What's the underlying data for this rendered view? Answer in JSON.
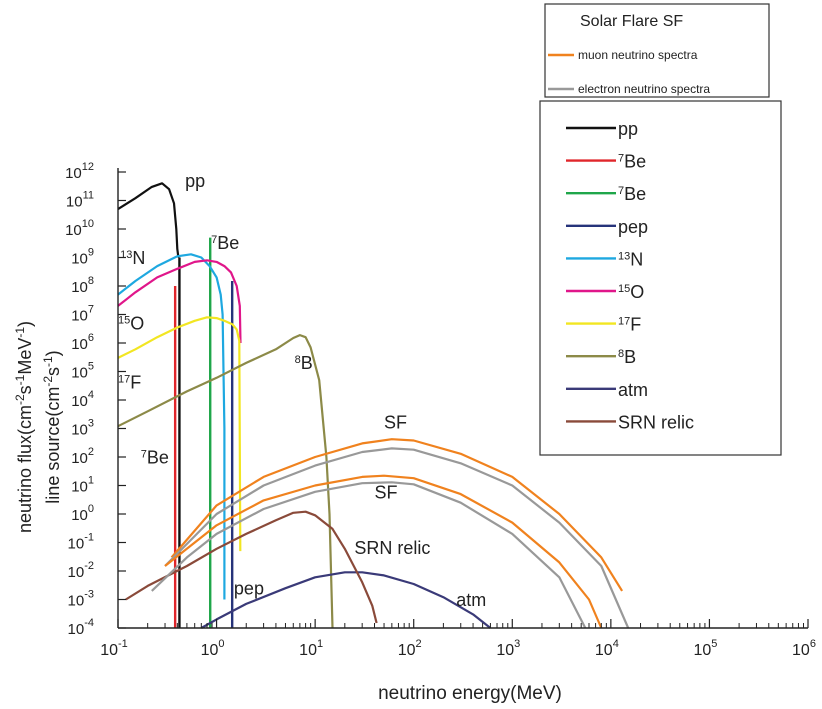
{
  "chart_data": {
    "type": "line",
    "title": "",
    "xlabel": "neutrino energy(MeV)",
    "ylabel_lines": [
      {
        "base": "neutrino flux(cm",
        "parts": [
          [
            "-2",
            "sup"
          ],
          [
            "s",
            ""
          ],
          [
            "-1",
            "sup"
          ],
          [
            "MeV",
            ""
          ],
          [
            "-1",
            "sup"
          ],
          [
            ")",
            ""
          ]
        ]
      },
      {
        "base": "line source(cm",
        "parts": [
          [
            "-2",
            "sup"
          ],
          [
            "s",
            ""
          ],
          [
            "-1",
            "sup"
          ],
          [
            ")",
            ""
          ]
        ]
      }
    ],
    "x_scale": "log",
    "y_scale": "log",
    "xlim": [
      0.1,
      1000000
    ],
    "ylim": [
      0.0001,
      1000000000000
    ],
    "x_tick_exponents": [
      -1,
      0,
      1,
      2,
      3,
      4,
      5,
      6
    ],
    "y_tick_exponents": [
      -4,
      -3,
      -2,
      -1,
      0,
      1,
      2,
      3,
      4,
      5,
      6,
      7,
      8,
      9,
      10,
      11,
      12
    ],
    "tick_base": "10",
    "grid": false,
    "legend_top": {
      "title": "Solar Flare  SF",
      "entries": [
        {
          "label": "muon neutrino spectra",
          "color": "#f0821e"
        },
        {
          "label": "electron neutrino  spectra",
          "color": "#999999"
        }
      ]
    },
    "legend_main": {
      "entries": [
        {
          "label": "pp",
          "sup": "",
          "color": "#111111"
        },
        {
          "label": "Be",
          "sup": "7",
          "color": "#e0262b"
        },
        {
          "label": "Be",
          "sup": "7",
          "color": "#1fa64a"
        },
        {
          "label": "pep",
          "sup": "",
          "color": "#26337a"
        },
        {
          "label": "N",
          "sup": "13",
          "color": "#1ea8e0"
        },
        {
          "label": "O",
          "sup": "15",
          "color": "#e0168a"
        },
        {
          "label": "F",
          "sup": "17",
          "color": "#f2e622"
        },
        {
          "label": "B",
          "sup": "8",
          "color": "#8c8a48"
        },
        {
          "label": "atm",
          "sup": "",
          "color": "#3a3a78"
        },
        {
          "label": "SRN relic",
          "sup": "",
          "color": "#8a4a3a"
        }
      ]
    },
    "series": [
      {
        "name": "pp",
        "color": "#111111",
        "points": [
          [
            0.1,
            50000000000.0
          ],
          [
            0.15,
            120000000000.0
          ],
          [
            0.22,
            300000000000.0
          ],
          [
            0.28,
            400000000000.0
          ],
          [
            0.33,
            250000000000.0
          ],
          [
            0.37,
            80000000000.0
          ],
          [
            0.39,
            10000000000.0
          ],
          [
            0.4,
            2000000000.0
          ],
          [
            0.41,
            1000000000.0
          ]
        ]
      },
      {
        "name": "13N",
        "color": "#1ea8e0",
        "points": [
          [
            0.1,
            50000000.0
          ],
          [
            0.15,
            150000000.0
          ],
          [
            0.25,
            500000000.0
          ],
          [
            0.4,
            1100000000.0
          ],
          [
            0.55,
            1300000000.0
          ],
          [
            0.7,
            1000000000.0
          ],
          [
            0.85,
            500000000.0
          ],
          [
            1.0,
            200000000.0
          ],
          [
            1.1,
            50000000.0
          ],
          [
            1.15,
            10000000.0
          ],
          [
            1.2,
            1000.0
          ],
          [
            1.2,
            0.001
          ]
        ]
      },
      {
        "name": "15O",
        "color": "#e0168a",
        "points": [
          [
            0.1,
            20000000.0
          ],
          [
            0.15,
            60000000.0
          ],
          [
            0.25,
            200000000.0
          ],
          [
            0.4,
            400000000.0
          ],
          [
            0.6,
            700000000.0
          ],
          [
            0.8,
            800000000.0
          ],
          [
            1.0,
            700000000.0
          ],
          [
            1.2,
            500000000.0
          ],
          [
            1.4,
            300000000.0
          ],
          [
            1.6,
            100000000.0
          ],
          [
            1.72,
            20000000.0
          ],
          [
            1.75,
            1000000.0
          ]
        ]
      },
      {
        "name": "17F",
        "color": "#f2e622",
        "points": [
          [
            0.1,
            300000.0
          ],
          [
            0.15,
            600000.0
          ],
          [
            0.25,
            1600000.0
          ],
          [
            0.4,
            3500000.0
          ],
          [
            0.6,
            6000000.0
          ],
          [
            0.8,
            8000000.0
          ],
          [
            1.0,
            7500000.0
          ],
          [
            1.2,
            6000000.0
          ],
          [
            1.45,
            4500000.0
          ],
          [
            1.6,
            3000000.0
          ],
          [
            1.7,
            1200000.0
          ],
          [
            1.74,
            0.05
          ]
        ]
      },
      {
        "name": "8B",
        "color": "#8c8a48",
        "points": [
          [
            0.1,
            1200.0
          ],
          [
            0.2,
            4000.0
          ],
          [
            0.5,
            20000.0
          ],
          [
            1,
            60000.0
          ],
          [
            2,
            200000.0
          ],
          [
            4,
            600000.0
          ],
          [
            6,
            1500000.0
          ],
          [
            7,
            1900000.0
          ],
          [
            8,
            1600000.0
          ],
          [
            9,
            700000.0
          ],
          [
            11,
            50000.0
          ],
          [
            13,
            100.0
          ],
          [
            14,
            1.0
          ],
          [
            14.5,
            0.01
          ],
          [
            15,
            0.0001
          ]
        ]
      },
      {
        "name": "atm",
        "color": "#3a3a78",
        "points": [
          [
            0.7,
            0.0001
          ],
          [
            1,
            0.0002
          ],
          [
            2,
            0.0007
          ],
          [
            5,
            0.0025
          ],
          [
            10,
            0.006
          ],
          [
            20,
            0.009
          ],
          [
            30,
            0.009
          ],
          [
            50,
            0.007
          ],
          [
            100,
            0.0035
          ],
          [
            200,
            0.0012
          ],
          [
            400,
            0.0003
          ],
          [
            600,
            0.0001
          ]
        ]
      },
      {
        "name": "SRN relic",
        "color": "#8a4a3a",
        "points": [
          [
            0.12,
            0.001
          ],
          [
            0.2,
            0.003
          ],
          [
            0.5,
            0.015
          ],
          [
            1,
            0.06
          ],
          [
            2,
            0.2
          ],
          [
            4,
            0.6
          ],
          [
            6,
            1.1
          ],
          [
            8,
            1.2
          ],
          [
            10,
            0.9
          ],
          [
            15,
            0.3
          ],
          [
            20,
            0.06
          ],
          [
            30,
            0.004
          ],
          [
            38,
            0.0006
          ],
          [
            42,
            0.00015
          ]
        ]
      },
      {
        "name": "SF muon upper",
        "color": "#f0821e",
        "points": [
          [
            0.35,
            0.03
          ],
          [
            1,
            2
          ],
          [
            3,
            20.0
          ],
          [
            10,
            100.0
          ],
          [
            30,
            300.0
          ],
          [
            60,
            420.0
          ],
          [
            100,
            380.0
          ],
          [
            300,
            130.0
          ],
          [
            1000,
            20.0
          ],
          [
            3000,
            1.0
          ],
          [
            8000,
            0.03
          ],
          [
            13000,
            0.002
          ]
        ]
      },
      {
        "name": "SF electron upper",
        "color": "#999999",
        "points": [
          [
            0.3,
            0.015
          ],
          [
            1,
            1
          ],
          [
            3,
            10.0
          ],
          [
            10,
            50.0
          ],
          [
            30,
            150.0
          ],
          [
            60,
            200.0
          ],
          [
            100,
            180.0
          ],
          [
            300,
            60.0
          ],
          [
            1000,
            10.0
          ],
          [
            3000,
            0.5
          ],
          [
            8000,
            0.015
          ],
          [
            15000,
            0.0001
          ]
        ]
      },
      {
        "name": "SF muon lower",
        "color": "#f0821e",
        "points": [
          [
            0.3,
            0.015
          ],
          [
            1,
            0.4
          ],
          [
            3,
            3
          ],
          [
            10,
            10.0
          ],
          [
            30,
            20.0
          ],
          [
            50,
            22.0
          ],
          [
            100,
            18.0
          ],
          [
            300,
            5
          ],
          [
            1000,
            0.5
          ],
          [
            3000,
            0.02
          ],
          [
            6000,
            0.001
          ],
          [
            8000,
            0.0001
          ]
        ]
      },
      {
        "name": "SF electron lower",
        "color": "#999999",
        "points": [
          [
            0.22,
            0.002
          ],
          [
            0.5,
            0.03
          ],
          [
            1,
            0.2
          ],
          [
            3,
            1.5
          ],
          [
            10,
            6
          ],
          [
            30,
            12.0
          ],
          [
            60,
            13.0
          ],
          [
            100,
            11.0
          ],
          [
            300,
            2.5
          ],
          [
            1000,
            0.2
          ],
          [
            3000,
            0.006
          ],
          [
            5500,
            0.0001
          ]
        ]
      }
    ],
    "lines": [
      {
        "name": "7Be 0.38",
        "color": "#e0262b",
        "x": 0.38,
        "y_top": 100000000.0,
        "y_bottom": 0.0001
      },
      {
        "name": "pp edge",
        "color": "#111111",
        "x": 0.42,
        "y_top": 1000000000.0,
        "y_bottom": 0.0001
      },
      {
        "name": "7Be 0.86",
        "color": "#1fa64a",
        "x": 0.862,
        "y_top": 5000000000.0,
        "y_bottom": 0.0001
      },
      {
        "name": "pep",
        "color": "#26337a",
        "x": 1.44,
        "y_top": 150000000.0,
        "y_bottom": 0.0001
      }
    ],
    "annotations": [
      {
        "text": "pp",
        "sup": "",
        "x": 0.48,
        "y": 300000000000.0
      },
      {
        "text": "Be",
        "sup": "7",
        "x": 0.88,
        "y": 2000000000.0
      },
      {
        "text": "N",
        "sup": "13",
        "x": 0.105,
        "y": 600000000.0
      },
      {
        "text": "O",
        "sup": "15",
        "x": 0.1,
        "y": 3000000.0
      },
      {
        "text": "F",
        "sup": "17",
        "x": 0.1,
        "y": 25000.0
      },
      {
        "text": "B",
        "sup": "8",
        "x": 6.2,
        "y": 120000.0
      },
      {
        "text": "Be",
        "sup": "7",
        "x": 0.17,
        "y": 60.0
      },
      {
        "text": "SF",
        "sup": "",
        "x": 50,
        "y": 1000.0
      },
      {
        "text": "SF",
        "sup": "",
        "x": 40,
        "y": 3.5
      },
      {
        "text": "SRN relic",
        "sup": "",
        "x": 25,
        "y": 0.04
      },
      {
        "text": "pep",
        "sup": "",
        "x": 1.5,
        "y": 0.0015
      },
      {
        "text": "atm",
        "sup": "",
        "x": 270,
        "y": 0.0006
      }
    ]
  }
}
